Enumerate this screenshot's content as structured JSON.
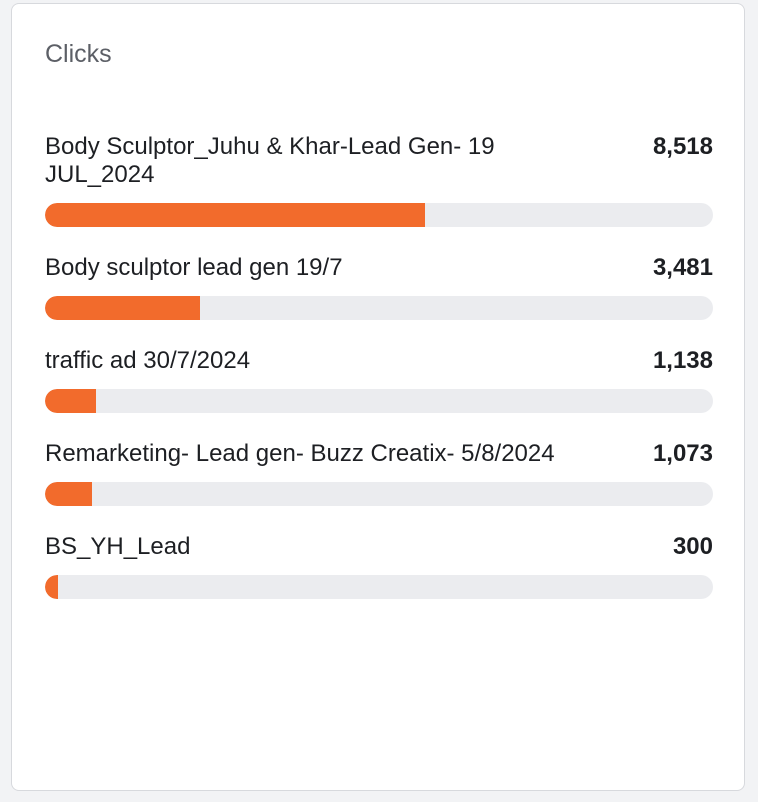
{
  "title": "Clicks",
  "accent_color": "#f26b2c",
  "track_color": "#ebecef",
  "rows": [
    {
      "label": "Body Sculptor_Juhu & Khar-Lead Gen- 19 JUL_2024",
      "value": "8,518",
      "clicks": 8518
    },
    {
      "label": "Body sculptor lead gen 19/7",
      "value": "3,481",
      "clicks": 3481
    },
    {
      "label": "traffic ad 30/7/2024",
      "value": "1,138",
      "clicks": 1138
    },
    {
      "label": "Remarketing- Lead gen- Buzz Creatix- 5/8/2024",
      "value": "1,073",
      "clicks": 1073
    },
    {
      "label": "BS_YH_Lead",
      "value": "300",
      "clicks": 300
    }
  ],
  "bar_fill_fractions": [
    0.569,
    0.232,
    0.076,
    0.071,
    0.02
  ]
}
